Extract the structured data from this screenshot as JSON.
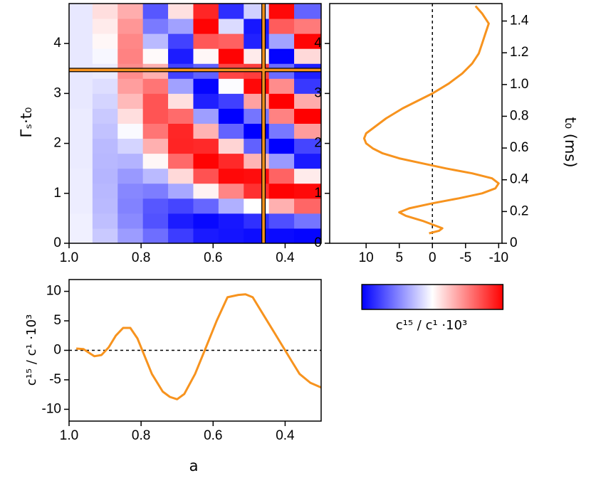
{
  "chart_data": [
    {
      "type": "heatmap",
      "ylabel": "Γₛ·t₀",
      "x": [
        0.97,
        0.9,
        0.83,
        0.76,
        0.69,
        0.62,
        0.55,
        0.48,
        0.41,
        0.34
      ],
      "y": [
        0.15,
        0.45,
        0.75,
        1.05,
        1.35,
        1.65,
        1.95,
        2.25,
        2.55,
        2.85,
        3.15,
        3.45,
        3.75,
        4.05,
        4.35,
        4.65
      ],
      "z": [
        [
          0.6,
          2.1,
          3.9,
          5.7,
          7.6,
          9.0,
          9.2,
          9.5,
          9.6,
          9.8
        ],
        [
          0.6,
          2.5,
          4.6,
          6.8,
          8.9,
          9.7,
          9.1,
          8.1,
          6.9,
          5.4
        ],
        [
          0.7,
          2.7,
          4.9,
          6.6,
          7.3,
          6.0,
          3.1,
          0,
          -3.1,
          -6.0
        ],
        [
          0.7,
          2.8,
          4.7,
          5.1,
          3.4,
          -0.5,
          -4.8,
          -8.1,
          -9.9,
          -9.6
        ],
        [
          0.7,
          2.9,
          4.0,
          2.7,
          -1.5,
          -6.8,
          -9.7,
          -9.5,
          -6.1,
          -0.8
        ],
        [
          0.8,
          2.8,
          3.0,
          -0.3,
          -5.9,
          -9.9,
          -8.4,
          -2.9,
          4.0,
          9.0
        ],
        [
          0.8,
          2.7,
          1.7,
          -3.1,
          -8.6,
          -8.4,
          -1.7,
          6.2,
          10.0,
          7.3
        ],
        [
          0.8,
          2.4,
          0.2,
          -5.4,
          -8.5,
          -3.0,
          6.1,
          10.0,
          5.3,
          -3.9
        ],
        [
          0.8,
          2.1,
          -1.3,
          -6.7,
          -5.8,
          3.8,
          10.0,
          5.4,
          -4.9,
          -10.0
        ],
        [
          0.9,
          1.7,
          -2.7,
          -6.7,
          -1.2,
          8.8,
          7.5,
          -3.7,
          -10.0,
          -3.3
        ],
        [
          0.9,
          1.3,
          -3.8,
          -5.4,
          3.7,
          9.8,
          0.1,
          -9.7,
          -4.5,
          7.8
        ],
        [
          0.9,
          0.8,
          -4.5,
          -3.1,
          7.4,
          6.2,
          -7.3,
          -7.6,
          5.8,
          8.8
        ],
        [
          0.9,
          0.3,
          -4.9,
          -0.2,
          8.9,
          -0.3,
          -9.9,
          -0.8,
          9.9,
          -1.5
        ],
        [
          0.9,
          -0.3,
          -4.7,
          2.7,
          7.4,
          -6.6,
          -6.2,
          8.7,
          3.6,
          -9.8
        ],
        [
          0.9,
          -0.8,
          -4.1,
          5.2,
          3.7,
          -9.9,
          1.4,
          9.1,
          -6.4,
          -5.2
        ],
        [
          0.9,
          -1.3,
          -3.2,
          6.6,
          -1.2,
          -8.5,
          8.2,
          1.8,
          -9.7,
          6.1
        ]
      ],
      "xlim": [
        1.0,
        0.3
      ],
      "ylim": [
        0,
        4.8
      ],
      "xticks": [
        {
          "value": 1.0,
          "label": "1.0"
        },
        0.8,
        0.6,
        0.4
      ],
      "yticks": [
        0,
        1,
        2,
        3,
        4
      ],
      "zlim": [
        -10,
        10
      ],
      "colormap": {
        "low": "#ff0000",
        "mid": "#ffffff",
        "high": "#0000ff"
      },
      "colorbar_label": "c¹⁵ / c¹ ·10³",
      "crosshair": {
        "x": 0.46,
        "y": 3.47,
        "color": "#f7931e"
      }
    },
    {
      "type": "line",
      "orientation": "horizontal",
      "y2label": "t₀ (ms)",
      "y": [
        0.2,
        0.25,
        0.3,
        0.35,
        0.45,
        0.55,
        0.62,
        0.7,
        0.8,
        0.9,
        1.0,
        1.1,
        1.2,
        1.3,
        1.4,
        1.5,
        1.6,
        1.7,
        1.8,
        1.9,
        2.0,
        2.1,
        2.2,
        2.3,
        2.5,
        2.7,
        2.9,
        3.0,
        3.2,
        3.4,
        3.6,
        3.8,
        4.0,
        4.2,
        4.4,
        4.6,
        4.75
      ],
      "values": [
        0.5,
        -1.0,
        -1.5,
        -0.5,
        1.5,
        4.0,
        5.0,
        3.5,
        0,
        -4,
        -7.5,
        -9.5,
        -10,
        -9,
        -6,
        -2,
        1.5,
        5,
        7.5,
        9,
        10,
        10.3,
        10,
        9,
        7,
        4.5,
        1.5,
        0,
        -2.5,
        -4.5,
        -6,
        -7,
        -7.5,
        -8,
        -8.5,
        -7.5,
        -6.5
      ],
      "color": "#f7931e",
      "xlim": [
        15.5,
        -10.5
      ],
      "xticks": [
        10,
        5,
        0,
        -5,
        -10
      ],
      "ylim": [
        0,
        4.8
      ],
      "yticks": [
        0,
        1,
        2,
        3,
        4
      ],
      "y2lim": [
        0,
        1.51
      ],
      "y2ticks": [
        0,
        0.2,
        0.4,
        0.6,
        0.8,
        {
          "value": 1.0,
          "label": "1.0"
        },
        1.2,
        1.4
      ],
      "zero_line": true
    },
    {
      "type": "line",
      "orientation": "vertical",
      "xlabel": "a",
      "ylabel": "c¹⁵ / c¹ ·10³",
      "x": [
        0.98,
        0.96,
        0.93,
        0.91,
        0.89,
        0.87,
        0.85,
        0.83,
        0.81,
        0.79,
        0.77,
        0.74,
        0.72,
        0.7,
        0.68,
        0.65,
        0.62,
        0.59,
        0.56,
        0.53,
        0.51,
        0.49,
        0.46,
        0.43,
        0.4,
        0.38,
        0.36,
        0.33,
        0.3
      ],
      "values": [
        0.3,
        0.2,
        -1.0,
        -0.8,
        0.5,
        2.5,
        3.8,
        3.8,
        2,
        -1,
        -4,
        -7,
        -7.9,
        -8.3,
        -7.4,
        -4,
        0.5,
        5,
        9,
        9.4,
        9.5,
        9.0,
        6,
        3,
        0,
        -2,
        -4,
        -5.5,
        -6.3
      ],
      "color": "#f7931e",
      "xlim": [
        1.0,
        0.3
      ],
      "xticks": [
        {
          "value": 1.0,
          "label": "1.0"
        },
        0.8,
        0.6,
        0.4
      ],
      "ylim": [
        -12,
        12
      ],
      "yticks": [
        10,
        5,
        0,
        -5,
        -10
      ],
      "zero_line": true
    }
  ]
}
